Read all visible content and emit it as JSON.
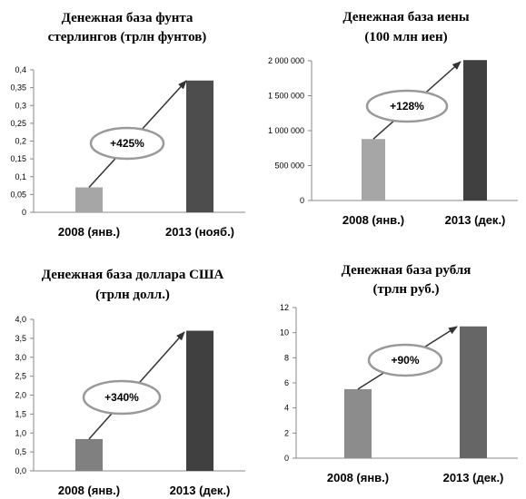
{
  "chart_data": [
    {
      "type": "bar",
      "title": [
        "Денежная база фунта",
        "стерлингов (трлн  фунтов)"
      ],
      "categories": [
        "2008 (янв.)",
        "2013 (нояб.)"
      ],
      "values": [
        0.07,
        0.37
      ],
      "ylim": [
        0,
        0.4
      ],
      "yticks": [
        "0",
        "0,05",
        "0,1",
        "0,15",
        "0,2",
        "0,25",
        "0,3",
        "0,35",
        "0,4"
      ],
      "annotation": "+425%",
      "colors": [
        "#a6a6a6",
        "#4d4d4d"
      ]
    },
    {
      "type": "bar",
      "title": [
        "Денежная база иены",
        "(100 млн  иен)"
      ],
      "categories": [
        "2008 (янв.)",
        "2013 (дек.)"
      ],
      "values": [
        880000,
        2010000
      ],
      "ylim": [
        0,
        2000000
      ],
      "yticks": [
        "0",
        "500 000",
        "1 000 000",
        "1 500 000",
        "2 000 000"
      ],
      "annotation": "+128%",
      "colors": [
        "#a6a6a6",
        "#404040"
      ]
    },
    {
      "type": "bar",
      "title": [
        "Денежная база доллара США",
        "(трлн  долл.)"
      ],
      "categories": [
        "2008 (янв.)",
        "2013 (дек.)"
      ],
      "values": [
        0.84,
        3.7
      ],
      "ylim": [
        0,
        4.0
      ],
      "yticks": [
        "0,0",
        "0,5",
        "1,0",
        "1,5",
        "2,0",
        "2,5",
        "3,0",
        "3,5",
        "4,0"
      ],
      "annotation": "+340%",
      "colors": [
        "#808080",
        "#404040"
      ]
    },
    {
      "type": "bar",
      "title": [
        "Денежная база рубля",
        "(трлн  руб.)"
      ],
      "categories": [
        "2008 (янв.)",
        "2013 (дек.)"
      ],
      "values": [
        5.5,
        10.5
      ],
      "ylim": [
        0,
        12
      ],
      "yticks": [
        "0",
        "2",
        "4",
        "6",
        "8",
        "10",
        "12"
      ],
      "annotation": "+90%",
      "colors": [
        "#8c8c8c",
        "#666666"
      ]
    }
  ]
}
